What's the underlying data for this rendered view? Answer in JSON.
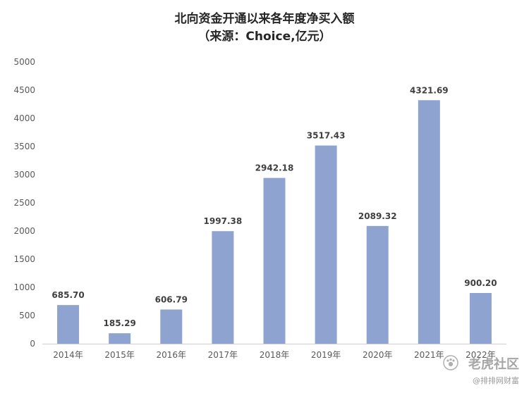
{
  "chart_data": {
    "type": "bar",
    "title": "北向资金开通以来各年度净买入额",
    "subtitle": "（来源：Choice,亿元）",
    "categories": [
      "2014年",
      "2015年",
      "2016年",
      "2017年",
      "2018年",
      "2019年",
      "2020年",
      "2021年",
      "2022年"
    ],
    "values": [
      685.7,
      185.29,
      606.79,
      1997.38,
      2942.18,
      3517.43,
      2089.32,
      4321.69,
      900.2
    ],
    "data_labels": [
      "685.70",
      "185.29",
      "606.79",
      "1997.38",
      "2942.18",
      "3517.43",
      "2089.32",
      "4321.69",
      "900.20"
    ],
    "ylim": [
      0,
      5000
    ],
    "yticks": [
      0,
      500,
      1000,
      1500,
      2000,
      2500,
      3000,
      3500,
      4000,
      4500,
      5000
    ],
    "bar_color": "#8fa3d1",
    "grid": false,
    "legend": "none"
  },
  "watermark": {
    "brand": "老虎社区",
    "handle": "@排排网财富"
  }
}
